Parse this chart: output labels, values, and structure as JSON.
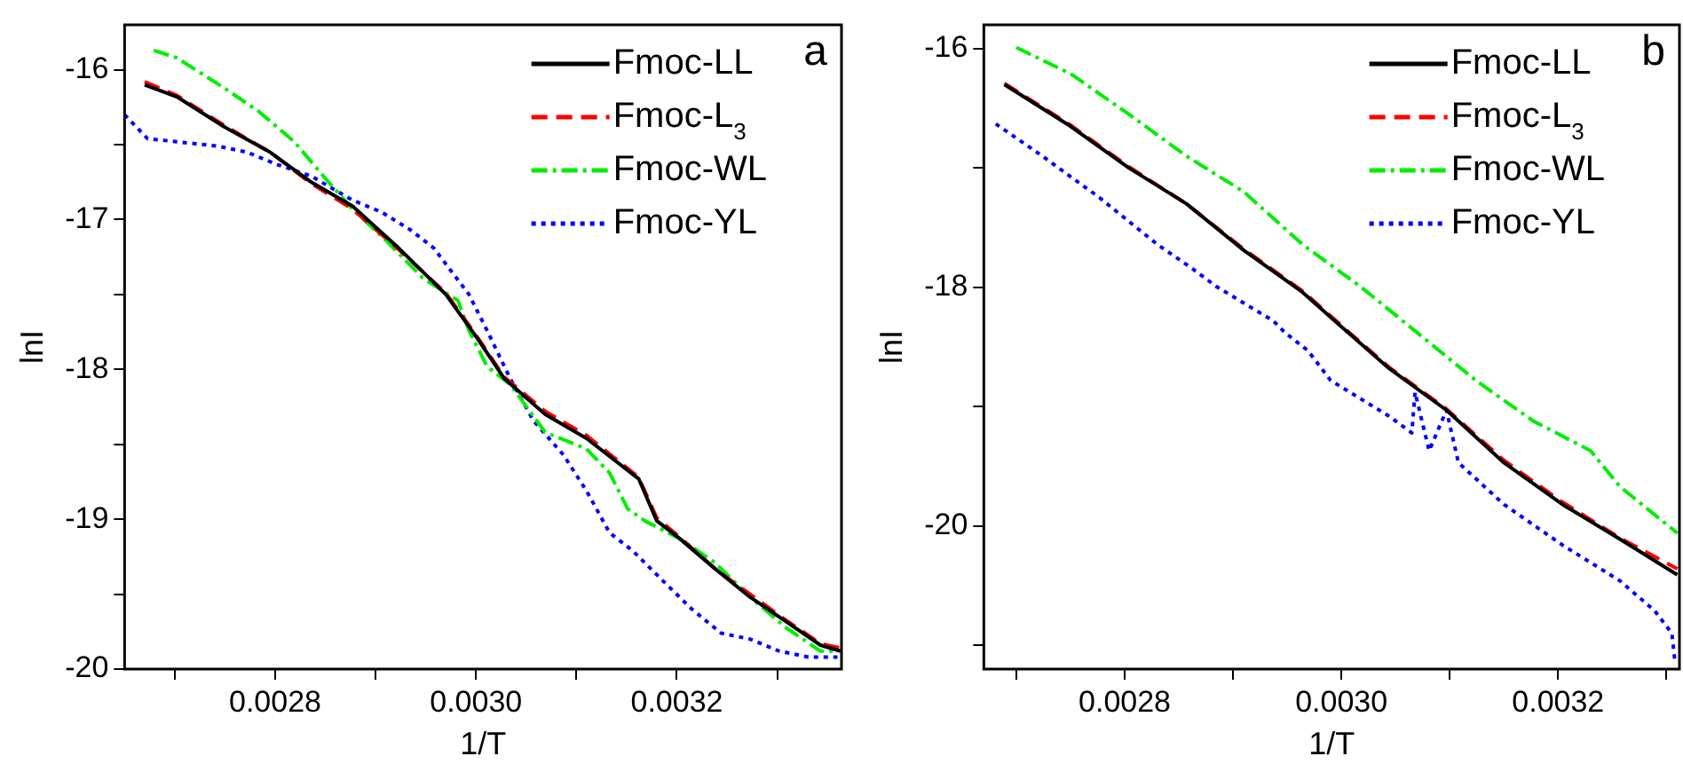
{
  "chart_data": [
    {
      "type": "line",
      "title": "a",
      "xlabel": "1/T",
      "ylabel": "lnI",
      "xlim": [
        0.00265,
        0.003364
      ],
      "ylim": [
        -20,
        -15.7
      ],
      "marker": "none",
      "legend": "top right",
      "xticks": [
        {
          "value": 0.0027,
          "label": null
        },
        {
          "value": 0.0028,
          "label": "0.0028"
        },
        {
          "value": 0.0029,
          "label": null
        },
        {
          "value": 0.003,
          "label": "0.0030"
        },
        {
          "value": 0.0031,
          "label": null
        },
        {
          "value": 0.0032,
          "label": "0.0032"
        },
        {
          "value": 0.0033,
          "label": null
        }
      ],
      "yticks": [
        -20,
        {
          "value": -19.5,
          "label": null
        },
        -19,
        {
          "value": -18.5,
          "label": null
        },
        -18,
        {
          "value": -17.5,
          "label": null
        },
        -17,
        {
          "value": -16.5,
          "label": null
        },
        -16
      ],
      "series": [
        {
          "name": "Fmoc-LL",
          "color": "#000000",
          "line_style": "solid",
          "x": [
            0.00267,
            0.002702,
            0.002749,
            0.002795,
            0.002836,
            0.002877,
            0.002923,
            0.00297,
            0.003,
            0.003028,
            0.003069,
            0.00311,
            0.003162,
            0.00318,
            0.003203,
            0.003238,
            0.003273,
            0.003308,
            0.003343,
            0.003363
          ],
          "values": [
            -16.1,
            -16.18,
            -16.38,
            -16.55,
            -16.75,
            -16.91,
            -17.19,
            -17.5,
            -17.78,
            -18.06,
            -18.3,
            -18.46,
            -18.73,
            -19.01,
            -19.13,
            -19.33,
            -19.52,
            -19.68,
            -19.84,
            -19.88
          ]
        },
        {
          "name": "Fmoc-L$_{3}$",
          "color": "#ff0000",
          "line_style": "dashed",
          "x": [
            0.00267,
            0.002702,
            0.002749,
            0.002795,
            0.002836,
            0.002877,
            0.002923,
            0.00297,
            0.003,
            0.003028,
            0.003069,
            0.00311,
            0.003162,
            0.00318,
            0.003203,
            0.003238,
            0.003273,
            0.003308,
            0.003343,
            0.003363
          ],
          "values": [
            -16.08,
            -16.17,
            -16.37,
            -16.55,
            -16.76,
            -16.93,
            -17.2,
            -17.49,
            -17.77,
            -18.05,
            -18.28,
            -18.44,
            -18.72,
            -18.99,
            -19.12,
            -19.33,
            -19.5,
            -19.67,
            -19.83,
            -19.86
          ]
        },
        {
          "name": "Fmoc-WL",
          "color": "#00ee00",
          "line_style": "dashdot",
          "x": [
            0.002679,
            0.002702,
            0.002749,
            0.002784,
            0.002819,
            0.002848,
            0.002877,
            0.002912,
            0.002947,
            0.002982,
            0.002993,
            0.003011,
            0.003034,
            0.003069,
            0.00311,
            0.003133,
            0.003151,
            0.003168,
            0.003203,
            0.003238,
            0.003273,
            0.003308,
            0.003343,
            0.00336
          ],
          "values": [
            -15.87,
            -15.92,
            -16.12,
            -16.28,
            -16.48,
            -16.71,
            -16.93,
            -17.15,
            -17.39,
            -17.54,
            -17.74,
            -17.98,
            -18.1,
            -18.42,
            -18.53,
            -18.69,
            -18.93,
            -19.01,
            -19.13,
            -19.29,
            -19.52,
            -19.72,
            -19.88,
            -19.88
          ]
        },
        {
          "name": "Fmoc-YL",
          "color": "#0000ff",
          "line_style": "dotted",
          "x": [
            0.00265,
            0.002673,
            0.002702,
            0.002743,
            0.002772,
            0.002801,
            0.002836,
            0.002877,
            0.002906,
            0.002935,
            0.002958,
            0.002976,
            0.002993,
            0.003011,
            0.003034,
            0.003057,
            0.003087,
            0.00311,
            0.003133,
            0.003156,
            0.003186,
            0.003215,
            0.003244,
            0.003273,
            0.003302,
            0.003331,
            0.00336
          ],
          "values": [
            -16.3,
            -16.46,
            -16.48,
            -16.51,
            -16.55,
            -16.63,
            -16.71,
            -16.87,
            -16.95,
            -17.07,
            -17.19,
            -17.35,
            -17.5,
            -17.74,
            -18.06,
            -18.34,
            -18.57,
            -18.81,
            -19.09,
            -19.21,
            -19.41,
            -19.6,
            -19.76,
            -19.8,
            -19.88,
            -19.92,
            -19.92
          ]
        }
      ]
    },
    {
      "type": "line",
      "title": "b",
      "xlabel": "1/T",
      "ylabel": "lnI",
      "xlim": [
        0.00267,
        0.003312
      ],
      "ylim": [
        -21.2,
        -15.8
      ],
      "marker": "none",
      "legend": "top right",
      "xticks": [
        {
          "value": 0.0027,
          "label": null
        },
        {
          "value": 0.0028,
          "label": "0.0028"
        },
        {
          "value": 0.0029,
          "label": null
        },
        {
          "value": 0.003,
          "label": "0.0030"
        },
        {
          "value": 0.0031,
          "label": null
        },
        {
          "value": 0.0032,
          "label": "0.0032"
        },
        {
          "value": 0.0033,
          "label": null
        }
      ],
      "yticks": [
        {
          "value": -21,
          "label": null
        },
        -20,
        {
          "value": -19,
          "label": null
        },
        -18,
        {
          "value": -17,
          "label": null
        },
        -16
      ],
      "series": [
        {
          "name": "Fmoc-LL",
          "color": "#000000",
          "line_style": "solid",
          "x": [
            0.002689,
            0.00275,
            0.002804,
            0.002857,
            0.00291,
            0.002964,
            0.003,
            0.003044,
            0.003097,
            0.00315,
            0.003204,
            0.003257,
            0.00331
          ],
          "values": [
            -16.3,
            -16.65,
            -17.0,
            -17.3,
            -17.69,
            -18.04,
            -18.33,
            -18.68,
            -19.03,
            -19.47,
            -19.82,
            -20.11,
            -20.41
          ]
        },
        {
          "name": "Fmoc-L$_{3}$",
          "color": "#ff0000",
          "line_style": "dashed",
          "x": [
            0.002689,
            0.00275,
            0.002804,
            0.002857,
            0.00291,
            0.002964,
            0.003,
            0.003044,
            0.003097,
            0.00315,
            0.003204,
            0.003257,
            0.00331
          ],
          "values": [
            -16.29,
            -16.64,
            -16.99,
            -17.3,
            -17.68,
            -18.03,
            -18.32,
            -18.67,
            -19.02,
            -19.45,
            -19.8,
            -20.1,
            -20.36
          ]
        },
        {
          "name": "Fmoc-WL",
          "color": "#00ee00",
          "line_style": "dashdot",
          "x": [
            0.0027,
            0.00275,
            0.002804,
            0.002857,
            0.00291,
            0.002964,
            0.003017,
            0.00307,
            0.003124,
            0.003177,
            0.00323,
            0.003257,
            0.00331
          ],
          "values": [
            -15.99,
            -16.21,
            -16.55,
            -16.9,
            -17.2,
            -17.64,
            -17.99,
            -18.38,
            -18.78,
            -19.12,
            -19.37,
            -19.67,
            -20.06
          ]
        },
        {
          "name": "Fmoc-YL",
          "color": "#0000ff",
          "line_style": "dotted",
          "x": [
            0.002681,
            0.002724,
            0.002777,
            0.00283,
            0.002862,
            0.002884,
            0.002937,
            0.002948,
            0.002969,
            0.00299,
            0.003044,
            0.003065,
            0.003068,
            0.003081,
            0.003097,
            0.003108,
            0.00315,
            0.003204,
            0.003257,
            0.003289,
            0.003305,
            0.003308
          ],
          "values": [
            -16.63,
            -16.9,
            -17.25,
            -17.64,
            -17.84,
            -17.99,
            -18.28,
            -18.38,
            -18.53,
            -18.78,
            -19.08,
            -19.22,
            -18.88,
            -19.37,
            -19.03,
            -19.47,
            -19.82,
            -20.16,
            -20.46,
            -20.71,
            -20.9,
            -21.15
          ]
        }
      ]
    }
  ]
}
